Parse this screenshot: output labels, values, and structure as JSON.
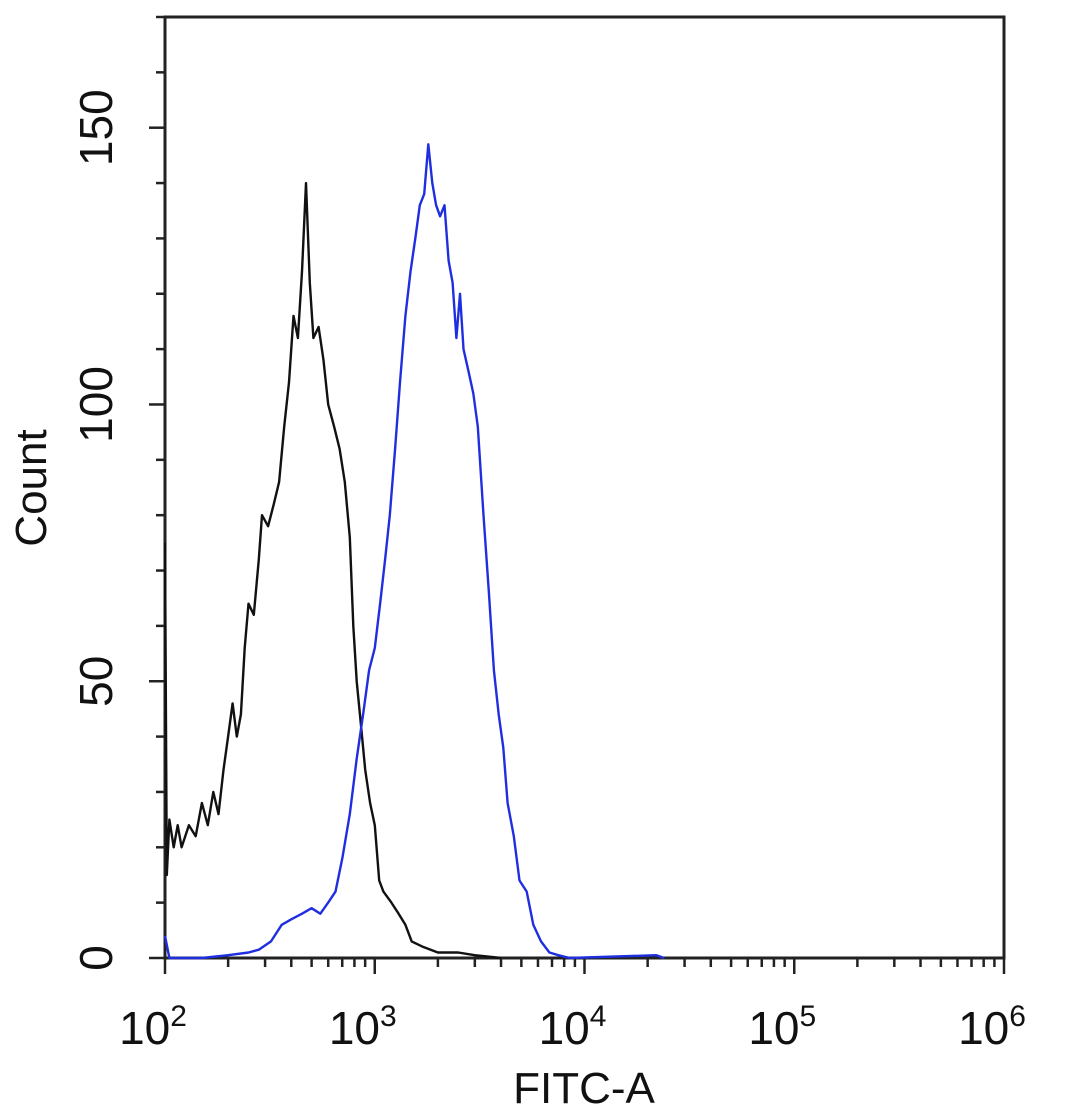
{
  "chart_data": {
    "type": "line",
    "title": "",
    "xlabel": "FITC-A",
    "ylabel": "Count",
    "x_scale": "log",
    "xlim": [
      100,
      1000000
    ],
    "ylim": [
      0,
      170
    ],
    "grid": false,
    "x_ticks": [
      {
        "value": 100,
        "base": "10",
        "exp": "2"
      },
      {
        "value": 1000,
        "base": "10",
        "exp": "3"
      },
      {
        "value": 10000,
        "base": "10",
        "exp": "4"
      },
      {
        "value": 100000,
        "base": "10",
        "exp": "5"
      },
      {
        "value": 1000000,
        "base": "10",
        "exp": "6"
      }
    ],
    "y_ticks": [
      {
        "value": 0,
        "label": "0"
      },
      {
        "value": 50,
        "label": "50"
      },
      {
        "value": 100,
        "label": "100"
      },
      {
        "value": 150,
        "label": "150"
      }
    ],
    "series": [
      {
        "color": "#111111",
        "points": [
          [
            100,
            75
          ],
          [
            102,
            15
          ],
          [
            105,
            25
          ],
          [
            110,
            20
          ],
          [
            115,
            24
          ],
          [
            120,
            20
          ],
          [
            130,
            24
          ],
          [
            140,
            22
          ],
          [
            150,
            28
          ],
          [
            160,
            24
          ],
          [
            170,
            30
          ],
          [
            180,
            26
          ],
          [
            190,
            34
          ],
          [
            200,
            40
          ],
          [
            210,
            46
          ],
          [
            220,
            40
          ],
          [
            230,
            44
          ],
          [
            240,
            56
          ],
          [
            250,
            64
          ],
          [
            265,
            62
          ],
          [
            280,
            72
          ],
          [
            290,
            80
          ],
          [
            310,
            78
          ],
          [
            330,
            82
          ],
          [
            350,
            86
          ],
          [
            370,
            96
          ],
          [
            390,
            104
          ],
          [
            410,
            116
          ],
          [
            430,
            112
          ],
          [
            450,
            124
          ],
          [
            470,
            140
          ],
          [
            490,
            122
          ],
          [
            510,
            112
          ],
          [
            540,
            114
          ],
          [
            570,
            108
          ],
          [
            600,
            100
          ],
          [
            640,
            96
          ],
          [
            680,
            92
          ],
          [
            720,
            86
          ],
          [
            760,
            76
          ],
          [
            790,
            60
          ],
          [
            820,
            50
          ],
          [
            860,
            42
          ],
          [
            900,
            34
          ],
          [
            950,
            28
          ],
          [
            1000,
            24
          ],
          [
            1050,
            14
          ],
          [
            1100,
            12
          ],
          [
            1200,
            10
          ],
          [
            1300,
            8
          ],
          [
            1400,
            6
          ],
          [
            1500,
            3
          ],
          [
            1700,
            2
          ],
          [
            2000,
            1
          ],
          [
            2500,
            1
          ],
          [
            3000,
            0.5
          ],
          [
            4000,
            0
          ]
        ]
      },
      {
        "color": "#1f2fe0",
        "points": [
          [
            100,
            4
          ],
          [
            105,
            0
          ],
          [
            150,
            0
          ],
          [
            200,
            0.5
          ],
          [
            250,
            1
          ],
          [
            280,
            1.5
          ],
          [
            320,
            3
          ],
          [
            360,
            6
          ],
          [
            400,
            7
          ],
          [
            450,
            8
          ],
          [
            500,
            9
          ],
          [
            550,
            8
          ],
          [
            600,
            10
          ],
          [
            650,
            12
          ],
          [
            700,
            18
          ],
          [
            760,
            26
          ],
          [
            820,
            36
          ],
          [
            880,
            44
          ],
          [
            940,
            52
          ],
          [
            1000,
            56
          ],
          [
            1060,
            64
          ],
          [
            1120,
            72
          ],
          [
            1180,
            80
          ],
          [
            1250,
            92
          ],
          [
            1320,
            104
          ],
          [
            1400,
            116
          ],
          [
            1480,
            124
          ],
          [
            1560,
            130
          ],
          [
            1640,
            136
          ],
          [
            1720,
            138
          ],
          [
            1800,
            147
          ],
          [
            1880,
            140
          ],
          [
            1960,
            136
          ],
          [
            2050,
            134
          ],
          [
            2150,
            136
          ],
          [
            2250,
            126
          ],
          [
            2350,
            122
          ],
          [
            2450,
            112
          ],
          [
            2550,
            120
          ],
          [
            2650,
            110
          ],
          [
            2800,
            106
          ],
          [
            2950,
            102
          ],
          [
            3100,
            96
          ],
          [
            3300,
            80
          ],
          [
            3500,
            66
          ],
          [
            3700,
            52
          ],
          [
            3900,
            44
          ],
          [
            4100,
            38
          ],
          [
            4300,
            28
          ],
          [
            4600,
            22
          ],
          [
            4900,
            14
          ],
          [
            5300,
            12
          ],
          [
            5700,
            6
          ],
          [
            6200,
            3
          ],
          [
            6800,
            1
          ],
          [
            7500,
            0.5
          ],
          [
            8500,
            0
          ],
          [
            22000,
            0.5
          ],
          [
            24000,
            0
          ]
        ]
      }
    ]
  }
}
